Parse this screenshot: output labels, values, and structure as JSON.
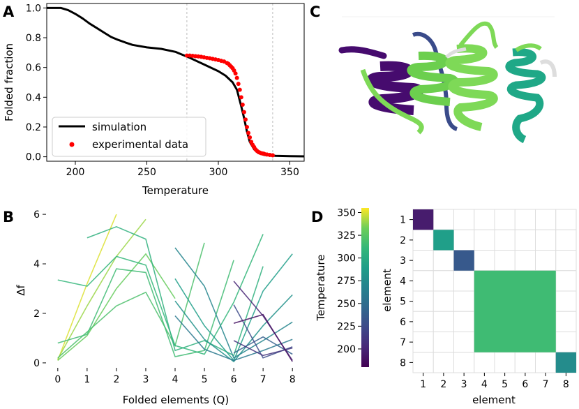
{
  "panels": {
    "a": "A",
    "b": "B",
    "c": "C",
    "d": "D"
  },
  "chart_data": [
    {
      "panel": "A",
      "type": "line",
      "xlabel": "Temperature",
      "ylabel": "Folded fraction",
      "xlim": [
        180,
        360
      ],
      "ylim": [
        -0.03,
        1.03
      ],
      "xticks": [
        200,
        250,
        300,
        350
      ],
      "yticks": [
        0.0,
        0.2,
        0.4,
        0.6,
        0.8,
        1.0
      ],
      "vlines": [
        278,
        338
      ],
      "legend_position": "lower-left",
      "series": [
        {
          "name": "simulation",
          "style": "line",
          "color": "#000000",
          "x": [
            180,
            190,
            195,
            200,
            205,
            210,
            215,
            220,
            225,
            230,
            235,
            240,
            250,
            260,
            270,
            280,
            290,
            300,
            305,
            310,
            313,
            316,
            318,
            320,
            322,
            325,
            328,
            332,
            340,
            350,
            360
          ],
          "y": [
            1.0,
            1.0,
            0.985,
            0.96,
            0.93,
            0.895,
            0.865,
            0.835,
            0.805,
            0.785,
            0.768,
            0.752,
            0.735,
            0.725,
            0.705,
            0.665,
            0.62,
            0.575,
            0.545,
            0.5,
            0.45,
            0.34,
            0.26,
            0.17,
            0.1,
            0.05,
            0.025,
            0.012,
            0.006,
            0.004,
            0.003
          ]
        },
        {
          "name": "experimental data",
          "style": "scatter",
          "color": "#ff0000",
          "x": [
            278,
            280,
            282,
            284,
            286,
            288,
            290,
            292,
            294,
            296,
            298,
            300,
            302,
            304,
            306,
            307,
            308,
            309,
            310,
            311,
            312,
            313,
            314,
            315,
            316,
            317,
            318,
            319,
            320,
            321,
            322,
            323,
            324,
            325,
            326,
            327,
            328,
            329,
            330,
            331,
            332,
            334,
            336,
            338
          ],
          "y": [
            0.68,
            0.68,
            0.678,
            0.676,
            0.674,
            0.672,
            0.668,
            0.665,
            0.662,
            0.658,
            0.654,
            0.65,
            0.645,
            0.64,
            0.63,
            0.625,
            0.615,
            0.605,
            0.595,
            0.58,
            0.56,
            0.53,
            0.49,
            0.45,
            0.4,
            0.35,
            0.3,
            0.25,
            0.2,
            0.16,
            0.13,
            0.1,
            0.08,
            0.065,
            0.05,
            0.04,
            0.032,
            0.028,
            0.024,
            0.022,
            0.02,
            0.015,
            0.012,
            0.01
          ]
        }
      ]
    },
    {
      "panel": "B",
      "type": "line",
      "xlabel": "Folded elements (Q)",
      "ylabel": "Δf",
      "xlim": [
        -0.4,
        8.4
      ],
      "ylim": [
        -0.2,
        6.2
      ],
      "xticks": [
        0,
        1,
        2,
        3,
        4,
        5,
        6,
        7,
        8
      ],
      "yticks": [
        0,
        2,
        4,
        6
      ],
      "series": [
        {
          "temperature": 350,
          "x": [
            0,
            1,
            2
          ],
          "y": [
            0.1,
            3.2,
            6.0
          ]
        },
        {
          "temperature": 340,
          "x": [
            0,
            1,
            2,
            3
          ],
          "y": [
            0.15,
            2.3,
            4.3,
            5.8
          ]
        },
        {
          "temperature": 330,
          "x": [
            0,
            1,
            2,
            3,
            4
          ],
          "y": [
            0.1,
            1.1,
            3.0,
            4.4,
            2.6
          ]
        },
        {
          "temperature": 320,
          "x": [
            0,
            1,
            2,
            3,
            4,
            5
          ],
          "y": [
            0.2,
            1.25,
            2.3,
            2.85,
            0.7,
            4.85
          ]
        },
        {
          "temperature": 315,
          "x": [
            0,
            1,
            2,
            3,
            4,
            5,
            6
          ],
          "y": [
            0.8,
            1.15,
            3.8,
            3.65,
            0.25,
            0.5,
            4.15
          ]
        },
        {
          "temperature": 310,
          "x": [
            0,
            1,
            2,
            3,
            4,
            5,
            6,
            7
          ],
          "y": [
            3.35,
            3.1,
            4.3,
            3.95,
            0.7,
            0.35,
            2.45,
            5.2
          ]
        },
        {
          "temperature": 305,
          "x": [
            1,
            2,
            3,
            4,
            5,
            6,
            7
          ],
          "y": [
            5.05,
            5.5,
            5.0,
            0.5,
            0.9,
            0.3,
            3.9
          ]
        },
        {
          "temperature": 290,
          "x": [
            4,
            5,
            6,
            7,
            8
          ],
          "y": [
            3.4,
            1.5,
            0.1,
            2.9,
            4.4
          ]
        },
        {
          "temperature": 280,
          "x": [
            4,
            5,
            6,
            7,
            8
          ],
          "y": [
            2.5,
            0.95,
            0.05,
            1.5,
            2.75
          ]
        },
        {
          "temperature": 270,
          "x": [
            4,
            5,
            6,
            7,
            8
          ],
          "y": [
            4.65,
            3.1,
            0.2,
            0.9,
            1.65
          ]
        },
        {
          "temperature": 260,
          "x": [
            4,
            5,
            6,
            7,
            8
          ],
          "y": [
            1.9,
            0.55,
            0.1,
            0.5,
            0.95
          ]
        },
        {
          "temperature": 240,
          "x": [
            6,
            7,
            8
          ],
          "y": [
            0.4,
            1.05,
            0.35
          ]
        },
        {
          "temperature": 225,
          "x": [
            6,
            7,
            8
          ],
          "y": [
            2.35,
            0.2,
            0.65
          ]
        },
        {
          "temperature": 210,
          "x": [
            6,
            7,
            8
          ],
          "y": [
            0.9,
            0.3,
            0.6
          ]
        },
        {
          "temperature": 200,
          "x": [
            6,
            7,
            8
          ],
          "y": [
            3.3,
            1.9,
            0.1
          ]
        },
        {
          "temperature": 190,
          "x": [
            6,
            7,
            8
          ],
          "y": [
            1.6,
            1.95,
            0.05
          ]
        }
      ],
      "colorbar": {
        "label": "Temperature",
        "range": [
          180,
          355
        ],
        "ticks": [
          200,
          225,
          250,
          275,
          300,
          325,
          350
        ],
        "colormap": "viridis"
      }
    },
    {
      "panel": "D",
      "type": "heatmap",
      "xlabel": "element",
      "ylabel": "element",
      "xticks": [
        "1",
        "2",
        "3",
        "4",
        "5",
        "6",
        "7",
        "8"
      ],
      "yticks": [
        "1",
        "2",
        "3",
        "4",
        "5",
        "6",
        "7",
        "8"
      ],
      "blocks": [
        {
          "rows": [
            1,
            1
          ],
          "cols": [
            1,
            1
          ],
          "temperature": 195
        },
        {
          "rows": [
            2,
            2
          ],
          "cols": [
            2,
            2
          ],
          "temperature": 290
        },
        {
          "rows": [
            3,
            3
          ],
          "cols": [
            3,
            3
          ],
          "temperature": 235
        },
        {
          "rows": [
            4,
            7
          ],
          "cols": [
            4,
            7
          ],
          "temperature": 315
        },
        {
          "rows": [
            8,
            8
          ],
          "cols": [
            8,
            8
          ],
          "temperature": 275
        }
      ]
    }
  ],
  "protein": {
    "segment_colors": [
      "#460b6e",
      "#3a4b8a",
      "#7ed957",
      "#6ccf4e",
      "#1fa887",
      "#dddddd"
    ]
  }
}
